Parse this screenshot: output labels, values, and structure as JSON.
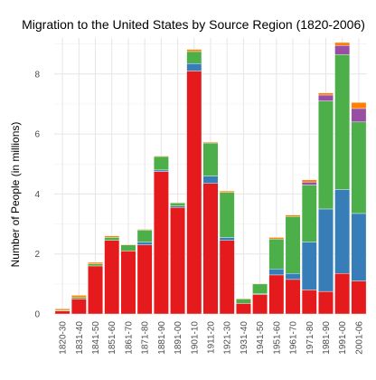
{
  "chart_data": {
    "type": "bar",
    "stacked": true,
    "title": "Migration to the United States by Source Region (1820-2006)",
    "xlabel": "",
    "ylabel": "Number of People (in millions)",
    "ylim": [
      0,
      9.2
    ],
    "yticks": [
      0,
      2,
      4,
      6,
      8
    ],
    "grid": true,
    "legend": "none",
    "categories": [
      "1820-30",
      "1831-40",
      "1841-50",
      "1851-60",
      "1861-70",
      "1871-80",
      "1881-90",
      "1891-00",
      "1901-10",
      "1911-20",
      "1921-30",
      "1931-40",
      "1941-50",
      "1951-60",
      "1961-70",
      "1971-80",
      "1981-90",
      "1991-00",
      "2001-06"
    ],
    "series": [
      {
        "color": "#e41a1c",
        "values": [
          0.1,
          0.5,
          1.6,
          2.45,
          2.1,
          2.3,
          4.75,
          3.55,
          8.1,
          4.35,
          2.45,
          0.35,
          0.65,
          1.3,
          1.15,
          0.8,
          0.75,
          1.35,
          1.1
        ]
      },
      {
        "color": "#377eb8",
        "values": [
          0.0,
          0.0,
          0.0,
          0.0,
          0.0,
          0.1,
          0.05,
          0.05,
          0.25,
          0.25,
          0.1,
          0.0,
          0.02,
          0.2,
          0.2,
          1.6,
          2.75,
          2.8,
          2.25
        ]
      },
      {
        "color": "#4daf4a",
        "values": [
          0.02,
          0.05,
          0.07,
          0.1,
          0.2,
          0.4,
          0.45,
          0.1,
          0.4,
          1.1,
          1.5,
          0.15,
          0.33,
          1.0,
          1.9,
          1.9,
          3.6,
          4.5,
          3.05
        ]
      },
      {
        "color": "#984ea3",
        "values": [
          0.0,
          0.0,
          0.0,
          0.0,
          0.0,
          0.0,
          0.0,
          0.0,
          0.0,
          0.0,
          0.0,
          0.0,
          0.0,
          0.0,
          0.0,
          0.1,
          0.2,
          0.3,
          0.45
        ]
      },
      {
        "color": "#ff7f00",
        "values": [
          0.05,
          0.07,
          0.05,
          0.05,
          0.02,
          0.02,
          0.02,
          0.02,
          0.07,
          0.03,
          0.05,
          0.02,
          0.02,
          0.05,
          0.05,
          0.07,
          0.07,
          0.1,
          0.2
        ]
      }
    ]
  }
}
